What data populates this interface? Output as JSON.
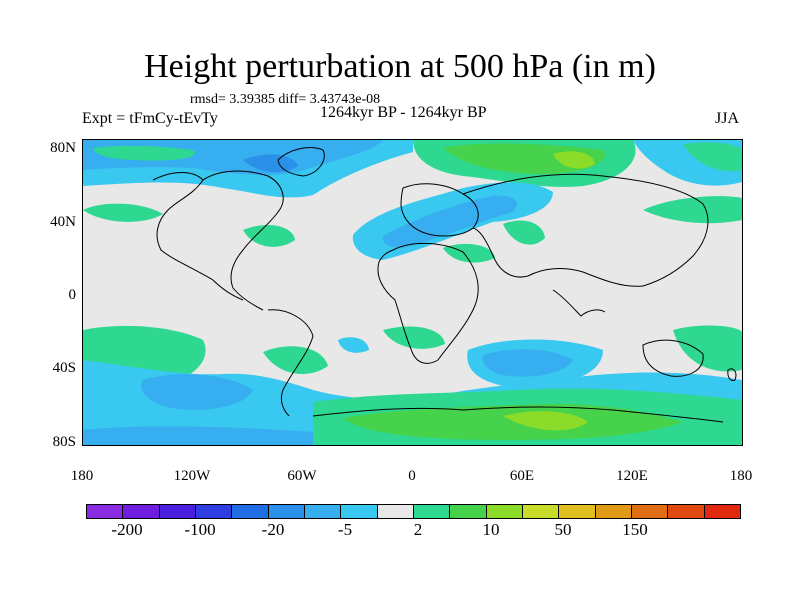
{
  "title": "Height perturbation at 500 hPa (in m)",
  "stats": "rmsd= 3.39385 diff= 3.43743e-08",
  "experiment": "Expt = tFmCy-tEvTy",
  "period": "1264kyr BP - 1264kyr BP",
  "season": "JJA",
  "lat_labels": [
    "80N",
    "40N",
    "0",
    "40S",
    "80S"
  ],
  "lon_labels": [
    "180",
    "120W",
    "60W",
    "0",
    "60E",
    "120E",
    "180"
  ],
  "colorbar": {
    "colors": [
      "#8a2be2",
      "#6f1ee0",
      "#4b1fe0",
      "#2f3ee0",
      "#1f6ee6",
      "#2a90e8",
      "#36aef0",
      "#39c8f0",
      "#e8e8e8",
      "#2ed890",
      "#46d24a",
      "#8adc28",
      "#c8dc2a",
      "#e0c020",
      "#e09a18",
      "#e06f14",
      "#e04a10",
      "#e02a10"
    ],
    "labels": [
      "-200",
      "-100",
      "-20",
      "-5",
      "2",
      "10",
      "50",
      "150"
    ]
  }
}
